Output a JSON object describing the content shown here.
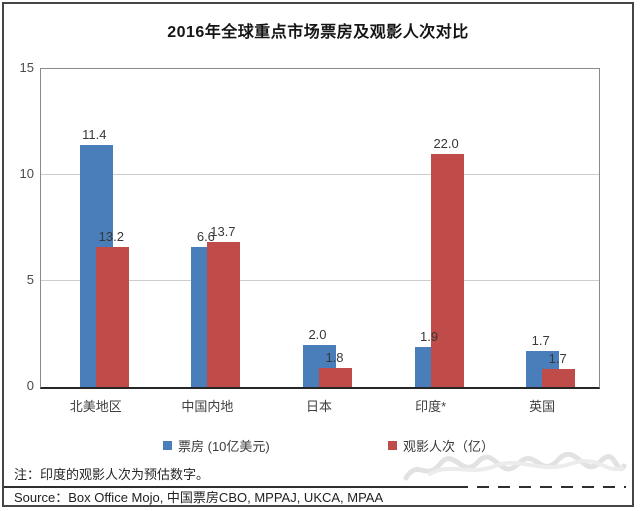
{
  "chart_data": {
    "type": "bar",
    "title": "2016年全球重点市场票房及观影人次对比",
    "categories": [
      "北美地区",
      "中国内地",
      "日本",
      "印度*",
      "英国"
    ],
    "series": [
      {
        "name": "票房 (10亿美元)",
        "color": "#4a7ebb",
        "axis_max": 15,
        "values": [
          11.4,
          6.6,
          2.0,
          1.9,
          1.7
        ]
      },
      {
        "name": "观影人次（亿）",
        "color": "#bf4c49",
        "axis_max": 30,
        "values": [
          13.2,
          13.7,
          1.8,
          22.0,
          1.7
        ]
      }
    ],
    "y_axis": {
      "range": [
        0,
        15
      ],
      "ticks": [
        0,
        5,
        10,
        15
      ]
    },
    "secondary_y_axis_hidden": {
      "range": [
        0,
        30
      ]
    },
    "grid": true,
    "legend_position": "bottom",
    "data_labels": true
  },
  "note": "注：印度的观影人次为预估数字。",
  "source": "Source：Box Office Mojo, 中国票房CBO, MPPAJ, UKCA, MPAA"
}
